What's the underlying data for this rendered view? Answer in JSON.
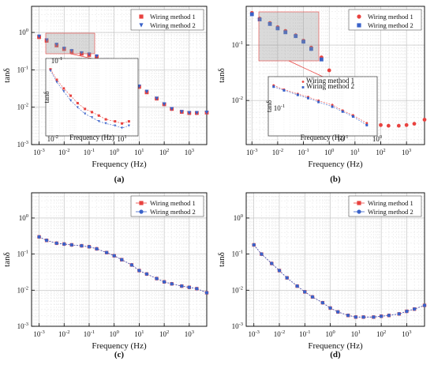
{
  "figure": {
    "x_axis_label": "Frequency (Hz)",
    "y_axis_label": "tanδ"
  },
  "chart_data": [
    {
      "panel": "(a)",
      "type": "scatter",
      "xscale": "log",
      "yscale": "log",
      "xlim": [
        0.0005,
        5000
      ],
      "ylim": [
        0.001,
        5
      ],
      "xticks": [
        "10^-3",
        "10^-2",
        "10^-1",
        "10^0",
        "10^1",
        "10^2",
        "10^3"
      ],
      "yticks": [
        "10^-3",
        "10^-2",
        "10^-1",
        "10^0"
      ],
      "xlabel": "Frequency (Hz)",
      "ylabel": "tanδ",
      "legend_position": "top-right",
      "grid": true,
      "series": [
        {
          "name": "Wiring method 1",
          "marker": "square",
          "color": "#e8423f",
          "x": [
            0.001,
            0.002,
            0.005,
            0.01,
            0.02,
            0.05,
            0.1,
            0.2,
            0.5,
            1,
            2,
            5,
            10,
            20,
            50,
            100,
            200,
            500,
            1000,
            2000,
            5000
          ],
          "y": [
            0.75,
            0.6,
            0.45,
            0.36,
            0.31,
            0.27,
            0.25,
            0.22,
            0.18,
            0.12,
            0.08,
            0.05,
            0.035,
            0.025,
            0.017,
            0.012,
            0.009,
            0.0075,
            0.007,
            0.007,
            0.0072
          ]
        },
        {
          "name": "Wiring method 2",
          "marker": "triangle-down",
          "color": "#3a62c9",
          "x": [
            0.001,
            0.002,
            0.005,
            0.01,
            0.02,
            0.05,
            0.1,
            0.2,
            0.5,
            1,
            2,
            5,
            10,
            20,
            50,
            100,
            200,
            500,
            1000,
            2000,
            5000
          ],
          "y": [
            0.78,
            0.62,
            0.47,
            0.37,
            0.32,
            0.28,
            0.26,
            0.23,
            0.18,
            0.125,
            0.082,
            0.052,
            0.036,
            0.026,
            0.017,
            0.012,
            0.009,
            0.0075,
            0.007,
            0.007,
            0.0072
          ]
        }
      ]
    },
    {
      "panel": "(b)",
      "type": "scatter",
      "xscale": "log",
      "yscale": "log",
      "xlim": [
        0.0006,
        5000
      ],
      "ylim": [
        0.0016,
        0.5
      ],
      "xticks": [
        "10^-3",
        "10^-2",
        "10^-1",
        "10^0",
        "10^1",
        "10^2",
        "10^3"
      ],
      "yticks": [
        "10^-2",
        "10^-1"
      ],
      "xlabel": "Frequency (Hz)",
      "ylabel": "tanδ",
      "legend_position": "top-right",
      "grid": true,
      "series": [
        {
          "name": "Wiring method 1",
          "marker": "circle",
          "color": "#e8423f",
          "x": [
            0.001,
            0.002,
            0.005,
            0.01,
            0.02,
            0.05,
            0.1,
            0.2,
            0.5,
            1,
            2,
            5,
            10,
            20,
            50,
            100,
            200,
            500,
            1000,
            2000,
            5000
          ],
          "y": [
            0.38,
            0.3,
            0.25,
            0.21,
            0.18,
            0.15,
            0.12,
            0.09,
            0.06,
            0.035,
            0.022,
            0.013,
            0.008,
            0.0055,
            0.0042,
            0.0036,
            0.0035,
            0.0035,
            0.0036,
            0.0038,
            0.0045
          ]
        },
        {
          "name": "Wiring method 2",
          "marker": "square",
          "color": "#3a62c9",
          "x": [
            0.001,
            0.002,
            0.005,
            0.01,
            0.02,
            0.05,
            0.1,
            0.2,
            0.5
          ],
          "y": [
            0.36,
            0.29,
            0.24,
            0.2,
            0.17,
            0.145,
            0.115,
            0.085,
            0.055
          ]
        }
      ]
    },
    {
      "panel": "(c)",
      "type": "line",
      "xscale": "log",
      "yscale": "log",
      "xlim": [
        0.0005,
        5000
      ],
      "ylim": [
        0.001,
        5
      ],
      "xticks": [
        "10^-3",
        "10^-2",
        "10^-1",
        "10^0",
        "10^1",
        "10^2",
        "10^3"
      ],
      "yticks": [
        "10^-3",
        "10^-2",
        "10^-1",
        "10^0"
      ],
      "xlabel": "Frequency (Hz)",
      "ylabel": "tanδ",
      "legend_position": "top-right",
      "grid": true,
      "series": [
        {
          "name": "Wiring method 1",
          "marker": "square",
          "color": "#e8423f",
          "x": [
            0.001,
            0.002,
            0.005,
            0.01,
            0.02,
            0.05,
            0.1,
            0.2,
            0.5,
            1,
            2,
            5,
            10,
            20,
            50,
            100,
            200,
            500,
            1000,
            2000,
            5000
          ],
          "y": [
            0.3,
            0.24,
            0.2,
            0.19,
            0.18,
            0.17,
            0.16,
            0.14,
            0.11,
            0.09,
            0.07,
            0.05,
            0.035,
            0.028,
            0.021,
            0.017,
            0.015,
            0.013,
            0.012,
            0.011,
            0.0085
          ]
        },
        {
          "name": "Wiring method 2",
          "marker": "circle",
          "color": "#3a62c9",
          "x": [
            0.001,
            0.002,
            0.005,
            0.01,
            0.02,
            0.05,
            0.1,
            0.2,
            0.5,
            1,
            2,
            5,
            10,
            20,
            50,
            100,
            200,
            500,
            1000,
            2000,
            5000
          ],
          "y": [
            0.3,
            0.24,
            0.2,
            0.19,
            0.18,
            0.17,
            0.16,
            0.14,
            0.11,
            0.09,
            0.07,
            0.05,
            0.035,
            0.028,
            0.021,
            0.017,
            0.015,
            0.013,
            0.012,
            0.011,
            0.0085
          ]
        }
      ]
    },
    {
      "panel": "(d)",
      "type": "line",
      "xscale": "log",
      "yscale": "log",
      "xlim": [
        0.0005,
        5000
      ],
      "ylim": [
        0.001,
        5
      ],
      "xticks": [
        "10^-3",
        "10^-2",
        "10^-1",
        "10^0",
        "10^1",
        "10^2",
        "10^3"
      ],
      "yticks": [
        "10^-3",
        "10^-2",
        "10^-1",
        "10^0"
      ],
      "xlabel": "Frequency (Hz)",
      "ylabel": "tanδ",
      "legend_position": "top-right",
      "grid": true,
      "series": [
        {
          "name": "Wiring method 1",
          "marker": "square",
          "color": "#e8423f",
          "x": [
            0.001,
            0.002,
            0.005,
            0.01,
            0.02,
            0.05,
            0.1,
            0.2,
            0.5,
            1,
            2,
            5,
            10,
            20,
            50,
            100,
            200,
            500,
            1000,
            2000,
            5000
          ],
          "y": [
            0.18,
            0.1,
            0.055,
            0.035,
            0.022,
            0.013,
            0.009,
            0.0065,
            0.0045,
            0.0032,
            0.0025,
            0.002,
            0.0018,
            0.0018,
            0.0018,
            0.0019,
            0.002,
            0.0022,
            0.0026,
            0.003,
            0.0038
          ]
        },
        {
          "name": "Wiring method 2",
          "marker": "circle",
          "color": "#3a62c9",
          "x": [
            0.001,
            0.002,
            0.005,
            0.01,
            0.02,
            0.05,
            0.1,
            0.2,
            0.5,
            1,
            2,
            5,
            10,
            20,
            50,
            100,
            200,
            500,
            1000,
            2000,
            5000
          ],
          "y": [
            0.18,
            0.1,
            0.055,
            0.035,
            0.022,
            0.013,
            0.009,
            0.0065,
            0.0045,
            0.0032,
            0.0025,
            0.002,
            0.0018,
            0.0018,
            0.0018,
            0.0019,
            0.002,
            0.0022,
            0.0026,
            0.003,
            0.0038
          ]
        }
      ]
    }
  ],
  "insets": [
    {
      "parent_panel": "(a)",
      "xlim": [
        0.005,
        50
      ],
      "ylim": [
        0.015,
        0.09
      ],
      "x_tick_labels": [
        "10^-2",
        "10^1"
      ],
      "y_tick_labels": [
        "10^-1"
      ],
      "x_axis_label": "Frequency (Hz)",
      "y_axis_label": "tanδ",
      "series": [
        {
          "name": "Wiring method 1",
          "color": "#e8423f",
          "marker": "square",
          "x": [
            0.008,
            0.015,
            0.03,
            0.06,
            0.12,
            0.25,
            0.5,
            1.0,
            2.0,
            5.0,
            10.0,
            20.0
          ],
          "y": [
            0.07,
            0.055,
            0.045,
            0.038,
            0.032,
            0.028,
            0.026,
            0.024,
            0.022,
            0.021,
            0.02,
            0.021
          ]
        },
        {
          "name": "Wiring method 2",
          "color": "#3a62c9",
          "marker": "triangle-down",
          "x": [
            0.008,
            0.015,
            0.03,
            0.06,
            0.12,
            0.25,
            0.5,
            1.0,
            2.0,
            5.0,
            10.0,
            20.0
          ],
          "y": [
            0.068,
            0.052,
            0.042,
            0.034,
            0.029,
            0.025,
            0.023,
            0.021,
            0.02,
            0.019,
            0.018,
            0.019
          ]
        }
      ]
    },
    {
      "parent_panel": "(b)",
      "xlim": [
        0.0007,
        1
      ],
      "ylim": [
        0.03,
        0.5
      ],
      "x_tick_labels": [
        "10^-1",
        "10^0"
      ],
      "y_tick_labels": [
        "10^-1"
      ],
      "x_axis_label": "Frequency (Hz)",
      "y_axis_label": "tanδ",
      "legend": [
        "Wiring method 1",
        "Wiring method 2"
      ],
      "series": [
        {
          "name": "Wiring method 1",
          "color": "#e8423f",
          "marker": "circle",
          "x": [
            0.001,
            0.002,
            0.005,
            0.01,
            0.02,
            0.05,
            0.1,
            0.2,
            0.5
          ],
          "y": [
            0.33,
            0.27,
            0.22,
            0.19,
            0.16,
            0.13,
            0.1,
            0.08,
            0.055
          ]
        },
        {
          "name": "Wiring method 2",
          "color": "#3a62c9",
          "marker": "square",
          "x": [
            0.001,
            0.002,
            0.005,
            0.01,
            0.02,
            0.05,
            0.1,
            0.2,
            0.5
          ],
          "y": [
            0.31,
            0.26,
            0.21,
            0.18,
            0.15,
            0.12,
            0.095,
            0.075,
            0.05
          ]
        }
      ]
    }
  ]
}
